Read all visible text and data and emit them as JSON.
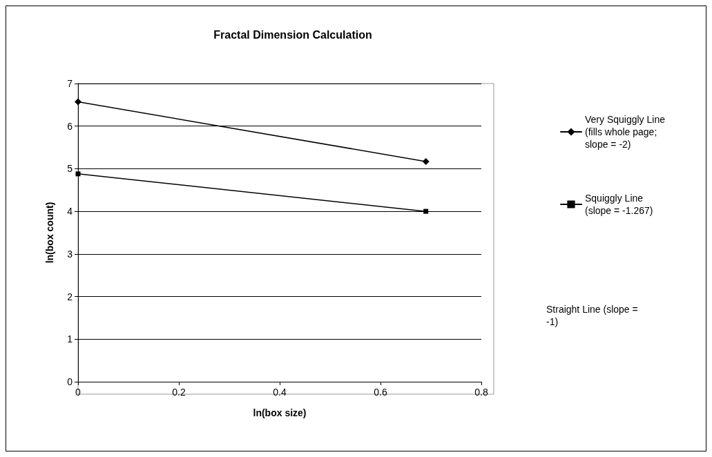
{
  "chart_data": {
    "type": "line",
    "title": "Fractal Dimension Calculation",
    "xlabel": "ln(box size)",
    "ylabel": "ln(box count)",
    "x": [
      0,
      0.69
    ],
    "series": [
      {
        "name": "Very Squiggly Line (fills whole page; slope = -2)",
        "color": "#000000",
        "marker": "diamond",
        "values": [
          6.57,
          5.17
        ]
      },
      {
        "name": "Squiggly Line (slope = -1.267)",
        "color": "#000000",
        "marker": "square",
        "values": [
          4.88,
          4.0
        ]
      }
    ],
    "annotations": [
      "Straight Line (slope = -1)"
    ],
    "xlim": [
      0,
      0.8
    ],
    "xticks": [
      0,
      0.2,
      0.4,
      0.6,
      0.8
    ],
    "ylim": [
      0,
      7
    ],
    "yticks": [
      0,
      1,
      2,
      3,
      4,
      5,
      6,
      7
    ],
    "grid": "y",
    "legend": "right",
    "line_style": "solid"
  }
}
